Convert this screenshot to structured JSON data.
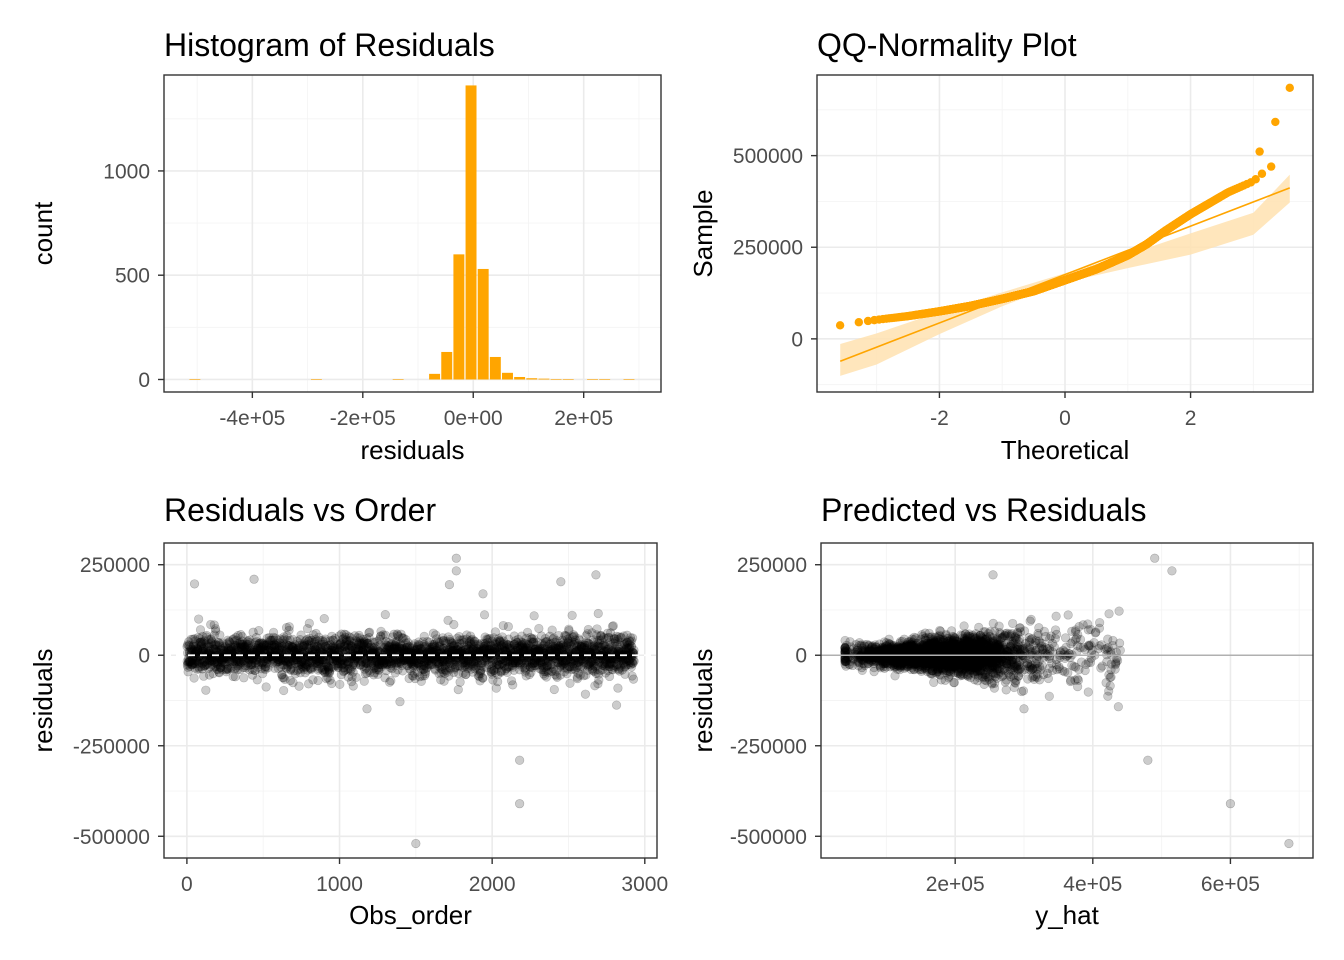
{
  "colors": {
    "accent": "#FFA500",
    "band": "#FFE2B0",
    "point": "#000000",
    "gridMajor": "#EBEBEB",
    "border": "#333333",
    "tickText": "#4D4D4D"
  },
  "chart_data": [
    {
      "id": "histogram",
      "type": "bar",
      "title": "Histogram of Residuals",
      "xlabel": "residuals",
      "ylabel": "count",
      "xlim": [
        -560000,
        340000
      ],
      "ylim": [
        -60,
        1460
      ],
      "xticks": [
        -400000,
        -200000,
        0,
        200000
      ],
      "xtick_labels": [
        "-4e+05",
        "-2e+05",
        "0e+00",
        "2e+05"
      ],
      "yticks": [
        0,
        500,
        1000
      ],
      "ytick_labels": [
        "0",
        "500",
        "1000"
      ],
      "bin_width": 22000,
      "bins": [
        {
          "x": -515000,
          "count": 1
        },
        {
          "x": -295000,
          "count": 1
        },
        {
          "x": -147000,
          "count": 1
        },
        {
          "x": -81000,
          "count": 27
        },
        {
          "x": -59000,
          "count": 132
        },
        {
          "x": -37000,
          "count": 600
        },
        {
          "x": -15000,
          "count": 1410
        },
        {
          "x": 7000,
          "count": 530
        },
        {
          "x": 29000,
          "count": 108
        },
        {
          "x": 51000,
          "count": 32
        },
        {
          "x": 73000,
          "count": 12
        },
        {
          "x": 95000,
          "count": 6
        },
        {
          "x": 117000,
          "count": 4
        },
        {
          "x": 139000,
          "count": 2
        },
        {
          "x": 161000,
          "count": 1
        },
        {
          "x": 205000,
          "count": 1
        },
        {
          "x": 227000,
          "count": 1
        },
        {
          "x": 271000,
          "count": 1
        }
      ]
    },
    {
      "id": "qqplot",
      "type": "scatter",
      "title": "QQ-Normality Plot",
      "xlabel": "Theoretical",
      "ylabel": "Sample",
      "xlim": [
        -3.95,
        3.95
      ],
      "ylim": [
        -145000,
        720000
      ],
      "xticks": [
        -2,
        0,
        2
      ],
      "xtick_labels": [
        "-2",
        "0",
        "2"
      ],
      "yticks": [
        0,
        250000,
        500000
      ],
      "ytick_labels": [
        "0",
        "250000",
        "500000"
      ],
      "n_points": 2930,
      "sample_quantile_curve": [
        [
          -3.58,
          37000
        ],
        [
          -3.3,
          45000
        ],
        [
          -3.0,
          52000
        ],
        [
          -2.5,
          62000
        ],
        [
          -2.0,
          75000
        ],
        [
          -1.5,
          90000
        ],
        [
          -1.0,
          109000
        ],
        [
          -0.5,
          130000
        ],
        [
          0.0,
          160000
        ],
        [
          0.5,
          190000
        ],
        [
          1.0,
          228000
        ],
        [
          1.3,
          258000
        ],
        [
          1.6,
          295000
        ],
        [
          2.0,
          340000
        ],
        [
          2.3,
          370000
        ],
        [
          2.6,
          400000
        ],
        [
          2.8,
          415000
        ],
        [
          3.0,
          430000
        ],
        [
          3.2,
          460000
        ],
        [
          3.3,
          472000
        ],
        [
          3.4,
          495000
        ],
        [
          3.52,
          520000
        ]
      ],
      "outliers": [
        {
          "x": 3.1,
          "y": 511000
        },
        {
          "x": 3.35,
          "y": 592000
        },
        {
          "x": 3.58,
          "y": 685000
        }
      ],
      "reference_line": {
        "x": [
          -3.58,
          3.58
        ],
        "y": [
          -61000,
          412000
        ]
      },
      "band": {
        "x": [
          -3.58,
          -3.0,
          -2.0,
          -1.0,
          0.0,
          1.0,
          2.0,
          3.0,
          3.58
        ],
        "upper": [
          -14000,
          15000,
          73000,
          127000,
          179000,
          230000,
          288000,
          344000,
          448000
        ],
        "lower": [
          -101000,
          -70000,
          13000,
          89000,
          154000,
          193000,
          230000,
          284000,
          372000
        ]
      }
    },
    {
      "id": "resid-order",
      "type": "scatter",
      "title": "Residuals vs Order",
      "xlabel": "Obs_order",
      "ylabel": "residuals",
      "xlim": [
        -150,
        3080
      ],
      "ylim": [
        -560000,
        310000
      ],
      "xticks": [
        0,
        1000,
        2000,
        3000
      ],
      "xtick_labels": [
        "0",
        "1000",
        "2000",
        "3000"
      ],
      "yticks": [
        -500000,
        -250000,
        0,
        250000
      ],
      "ytick_labels": [
        "-500000",
        "-250000",
        "0",
        "250000"
      ],
      "n_points": 2930,
      "reference_line_y": 0,
      "notable_points": [
        {
          "x": 50,
          "y": 197000
        },
        {
          "x": 440,
          "y": 210000
        },
        {
          "x": 1180,
          "y": -148000
        },
        {
          "x": 1500,
          "y": -520000
        },
        {
          "x": 1720,
          "y": 195000
        },
        {
          "x": 1765,
          "y": 268000
        },
        {
          "x": 1765,
          "y": 233000
        },
        {
          "x": 2180,
          "y": -290000
        },
        {
          "x": 2180,
          "y": -410000
        },
        {
          "x": 2450,
          "y": 203000
        },
        {
          "x": 2680,
          "y": 222000
        }
      ]
    },
    {
      "id": "pred-resid",
      "type": "scatter",
      "title": "Predicted vs Residuals",
      "xlabel": "y_hat",
      "ylabel": "residuals",
      "xlim": [
        5000,
        720000
      ],
      "ylim": [
        -560000,
        310000
      ],
      "xticks": [
        200000,
        400000,
        600000
      ],
      "xtick_labels": [
        "2e+05",
        "4e+05",
        "6e+05"
      ],
      "yticks": [
        -500000,
        -250000,
        0,
        250000
      ],
      "ytick_labels": [
        "-500000",
        "-250000",
        "0",
        "250000"
      ],
      "n_points": 2930,
      "reference_line_y": 0,
      "notable_points": [
        {
          "x": 480000,
          "y": -290000
        },
        {
          "x": 490000,
          "y": 268000
        },
        {
          "x": 515000,
          "y": 233000
        },
        {
          "x": 600000,
          "y": -410000
        },
        {
          "x": 685000,
          "y": -520000
        },
        {
          "x": 300000,
          "y": -148000
        },
        {
          "x": 255000,
          "y": 222000
        }
      ]
    }
  ]
}
